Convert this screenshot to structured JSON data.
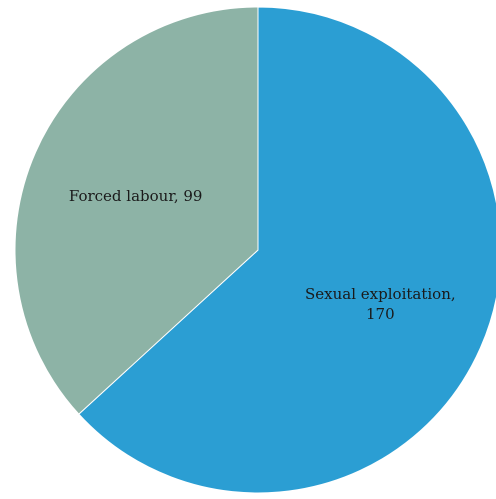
{
  "chart_data": {
    "type": "pie",
    "title": "",
    "start_angle_deg": 0,
    "direction": "clockwise",
    "slices": [
      {
        "category": "Sexual exploitation",
        "value": 170,
        "color": "#2b9ed3",
        "label_lines": [
          "Sexual exploitation,",
          "170"
        ]
      },
      {
        "category": "Forced labour",
        "value": 99,
        "color": "#8db3a6",
        "label_lines": [
          "Forced labour, 99"
        ]
      }
    ],
    "legend": "none"
  }
}
